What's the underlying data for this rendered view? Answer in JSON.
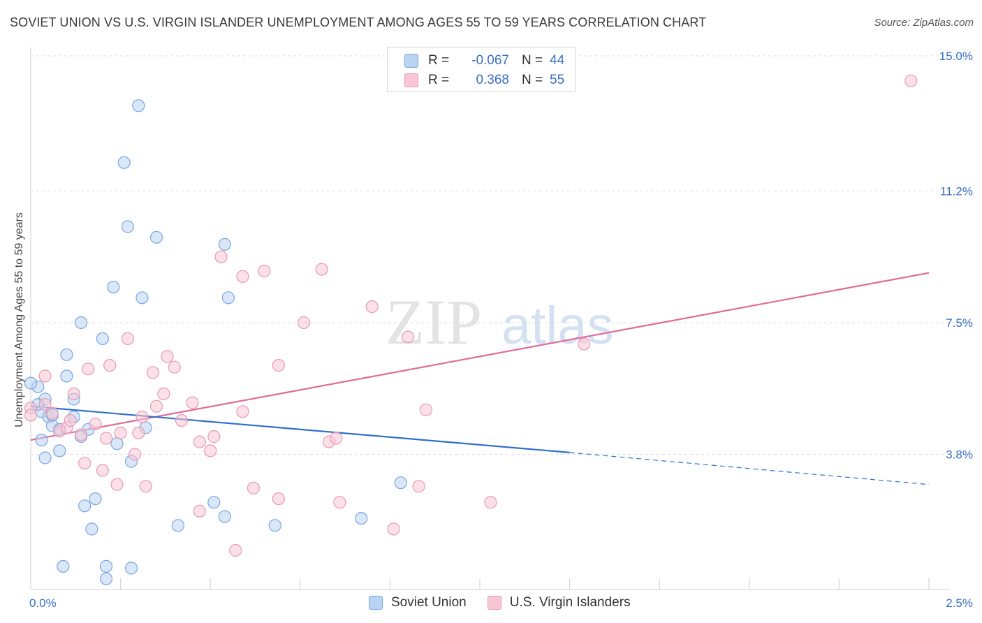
{
  "title": "SOVIET UNION VS U.S. VIRGIN ISLANDER UNEMPLOYMENT AMONG AGES 55 TO 59 YEARS CORRELATION CHART",
  "source": "Source: ZipAtlas.com",
  "watermark": {
    "zip": "ZIP",
    "atlas": "atlas"
  },
  "legend": {
    "rows": [
      {
        "r_label": "R =",
        "r_value": "-0.067",
        "n_label": "N =",
        "n_value": "44",
        "fill": "#b9d3f3",
        "stroke": "#7aa6e0"
      },
      {
        "r_label": "R =",
        "r_value": "0.368",
        "n_label": "N =",
        "n_value": "55",
        "fill": "#f8c6d5",
        "stroke": "#e79ab2"
      }
    ]
  },
  "chart_data": {
    "type": "scatter",
    "xlabel": "",
    "ylabel": "Unemployment Among Ages 55 to 59 years",
    "xlim": [
      0,
      2.5
    ],
    "ylim": [
      0,
      15
    ],
    "x_tick_labels": [
      "0.0%",
      "2.5%"
    ],
    "y_ticks": [
      3.8,
      7.5,
      11.2,
      15.0
    ],
    "y_tick_labels": [
      "3.8%",
      "7.5%",
      "11.2%",
      "15.0%"
    ],
    "grid": "horizontal dashed",
    "legend_placement": "top-center",
    "series": [
      {
        "name": "Soviet Union",
        "color": "#7aa6e0",
        "fill": "#b9d3f3",
        "trend": {
          "x": [
            0.0,
            1.5
          ],
          "y": [
            5.15,
            3.85
          ],
          "dash_to": [
            2.5,
            2.95
          ]
        },
        "points": [
          [
            0.3,
            13.6
          ],
          [
            0.26,
            12.0
          ],
          [
            0.27,
            10.2
          ],
          [
            0.35,
            9.9
          ],
          [
            0.54,
            9.7
          ],
          [
            0.23,
            8.5
          ],
          [
            0.31,
            8.2
          ],
          [
            0.55,
            8.2
          ],
          [
            0.14,
            7.5
          ],
          [
            0.2,
            7.05
          ],
          [
            0.1,
            6.6
          ],
          [
            0.1,
            6.0
          ],
          [
            0.12,
            5.35
          ],
          [
            0.02,
            5.7
          ],
          [
            0.0,
            5.8
          ],
          [
            0.04,
            5.35
          ],
          [
            0.03,
            5.0
          ],
          [
            0.05,
            4.85
          ],
          [
            0.12,
            4.85
          ],
          [
            0.06,
            4.6
          ],
          [
            0.08,
            4.5
          ],
          [
            0.16,
            4.5
          ],
          [
            0.32,
            4.55
          ],
          [
            0.14,
            4.3
          ],
          [
            0.03,
            4.2
          ],
          [
            0.24,
            4.1
          ],
          [
            0.08,
            3.9
          ],
          [
            0.04,
            3.7
          ],
          [
            0.28,
            3.6
          ],
          [
            1.03,
            3.0
          ],
          [
            0.18,
            2.55
          ],
          [
            0.15,
            2.35
          ],
          [
            0.51,
            2.45
          ],
          [
            0.54,
            2.05
          ],
          [
            0.17,
            1.7
          ],
          [
            0.41,
            1.8
          ],
          [
            0.68,
            1.8
          ],
          [
            0.92,
            2.0
          ],
          [
            0.09,
            0.65
          ],
          [
            0.21,
            0.65
          ],
          [
            0.28,
            0.6
          ],
          [
            0.21,
            0.3
          ],
          [
            0.02,
            5.2
          ],
          [
            0.06,
            4.9
          ]
        ]
      },
      {
        "name": "U.S. Virgin Islanders",
        "color": "#e79ab2",
        "fill": "#f8c6d5",
        "trend": {
          "x": [
            0.0,
            2.5
          ],
          "y": [
            4.2,
            8.9
          ]
        },
        "points": [
          [
            2.45,
            14.3
          ],
          [
            0.53,
            9.35
          ],
          [
            0.81,
            9.0
          ],
          [
            0.65,
            8.95
          ],
          [
            0.59,
            8.8
          ],
          [
            0.95,
            7.95
          ],
          [
            0.76,
            7.5
          ],
          [
            1.05,
            7.1
          ],
          [
            1.54,
            6.9
          ],
          [
            0.27,
            7.05
          ],
          [
            0.38,
            6.55
          ],
          [
            0.22,
            6.3
          ],
          [
            0.69,
            6.3
          ],
          [
            0.4,
            6.25
          ],
          [
            0.16,
            6.2
          ],
          [
            0.34,
            6.1
          ],
          [
            0.04,
            6.0
          ],
          [
            0.12,
            5.5
          ],
          [
            0.37,
            5.5
          ],
          [
            0.45,
            5.25
          ],
          [
            0.35,
            5.15
          ],
          [
            1.1,
            5.05
          ],
          [
            0.59,
            5.0
          ],
          [
            0.0,
            5.1
          ],
          [
            0.31,
            4.85
          ],
          [
            0.42,
            4.75
          ],
          [
            0.18,
            4.65
          ],
          [
            0.08,
            4.45
          ],
          [
            0.1,
            4.55
          ],
          [
            0.25,
            4.4
          ],
          [
            0.14,
            4.35
          ],
          [
            0.3,
            4.4
          ],
          [
            0.51,
            4.3
          ],
          [
            0.21,
            4.25
          ],
          [
            0.83,
            4.15
          ],
          [
            0.85,
            4.25
          ],
          [
            0.47,
            4.15
          ],
          [
            0.5,
            3.9
          ],
          [
            0.29,
            3.8
          ],
          [
            0.15,
            3.55
          ],
          [
            0.2,
            3.35
          ],
          [
            0.24,
            2.95
          ],
          [
            0.32,
            2.9
          ],
          [
            1.08,
            2.9
          ],
          [
            0.62,
            2.85
          ],
          [
            0.69,
            2.55
          ],
          [
            0.86,
            2.45
          ],
          [
            1.28,
            2.45
          ],
          [
            0.47,
            2.2
          ],
          [
            1.01,
            1.7
          ],
          [
            0.57,
            1.1
          ],
          [
            0.0,
            4.9
          ],
          [
            0.06,
            4.95
          ],
          [
            0.04,
            5.2
          ],
          [
            0.11,
            4.75
          ]
        ]
      }
    ]
  }
}
